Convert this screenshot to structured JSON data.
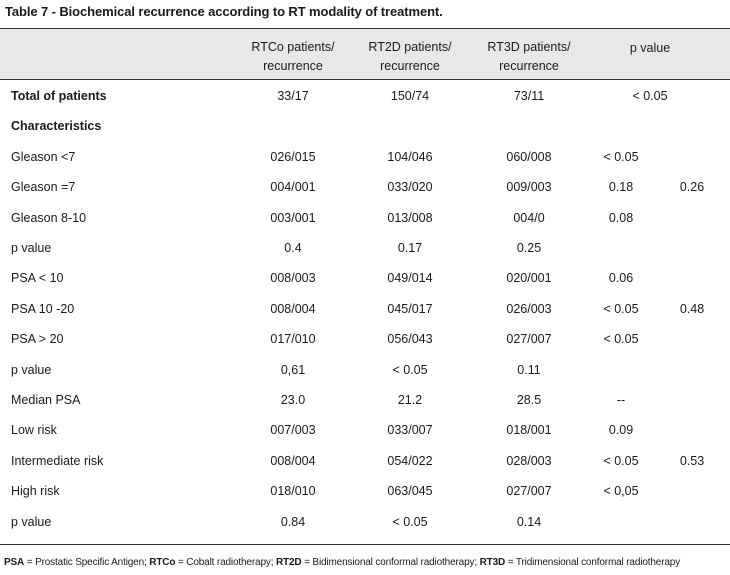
{
  "title": "Table 7 - Biochemical recurrence according to RT modality of treatment.",
  "header": {
    "col1": "RTCo patients/\nrecurrence",
    "col2": "RT2D patients/\nrecurrence",
    "col3": "RT3D patients/\nrecurrence",
    "col4": "p value"
  },
  "rows": [
    {
      "label": "Total of patients",
      "bold": true,
      "v1": "33/17",
      "v2": "150/74",
      "v3": "73/11",
      "p": "< 0.05",
      "p_centered": true,
      "g": ""
    },
    {
      "label": "Characteristics",
      "bold": true,
      "v1": "",
      "v2": "",
      "v3": "",
      "p": "",
      "g": ""
    },
    {
      "label": "Gleason <7",
      "v1": "026/015",
      "v2": "104/046",
      "v3": "060/008",
      "p": "< 0.05",
      "g": ""
    },
    {
      "label": "Gleason =7",
      "v1": "004/001",
      "v2": "033/020",
      "v3": "009/003",
      "p": "0.18",
      "g": "0.26"
    },
    {
      "label": "Gleason 8-10",
      "v1": "003/001",
      "v2": "013/008",
      "v3": "004/0",
      "p": "0.08",
      "g": ""
    },
    {
      "label": "p value",
      "v1": "0.4",
      "v2": "0.17",
      "v3": "0.25",
      "p": "",
      "g": ""
    },
    {
      "label": "PSA < 10",
      "v1": "008/003",
      "v2": "049/014",
      "v3": "020/001",
      "p": "0.06",
      "g": ""
    },
    {
      "label": "PSA 10 -20",
      "v1": "008/004",
      "v2": "045/017",
      "v3": "026/003",
      "p": "< 0.05",
      "g": "0.48"
    },
    {
      "label": "PSA > 20",
      "v1": "017/010",
      "v2": "056/043",
      "v3": "027/007",
      "p": "< 0.05",
      "g": ""
    },
    {
      "label": "p value",
      "v1": "0,61",
      "v2": "< 0.05",
      "v3": "0.11",
      "p": "",
      "g": ""
    },
    {
      "label": "Median PSA",
      "v1": "23.0",
      "v2": "21.2",
      "v3": "28.5",
      "p": "--",
      "g": ""
    },
    {
      "label": "Low risk",
      "v1": "007/003",
      "v2": "033/007",
      "v3": "018/001",
      "p": "0.09",
      "g": ""
    },
    {
      "label": "Intermediate risk",
      "v1": "008/004",
      "v2": "054/022",
      "v3": "028/003",
      "p": "< 0.05",
      "g": "0.53"
    },
    {
      "label": "High risk",
      "v1": "018/010",
      "v2": "063/045",
      "v3": "027/007",
      "p": "< 0,05",
      "g": ""
    },
    {
      "label": "p value",
      "v1": "0.84",
      "v2": "< 0.05",
      "v3": "0.14",
      "p": "",
      "g": ""
    }
  ],
  "footnote": [
    {
      "abbr": "PSA",
      "text": " = Prostatic Specific Antigen; "
    },
    {
      "abbr": "RTCo",
      "text": " = Cobalt radiotherapy; "
    },
    {
      "abbr": "RT2D",
      "text": " = Bidimensional conformal radiotherapy; "
    },
    {
      "abbr": "RT3D",
      "text": " = Tridimensional conformal radiotherapy"
    }
  ]
}
